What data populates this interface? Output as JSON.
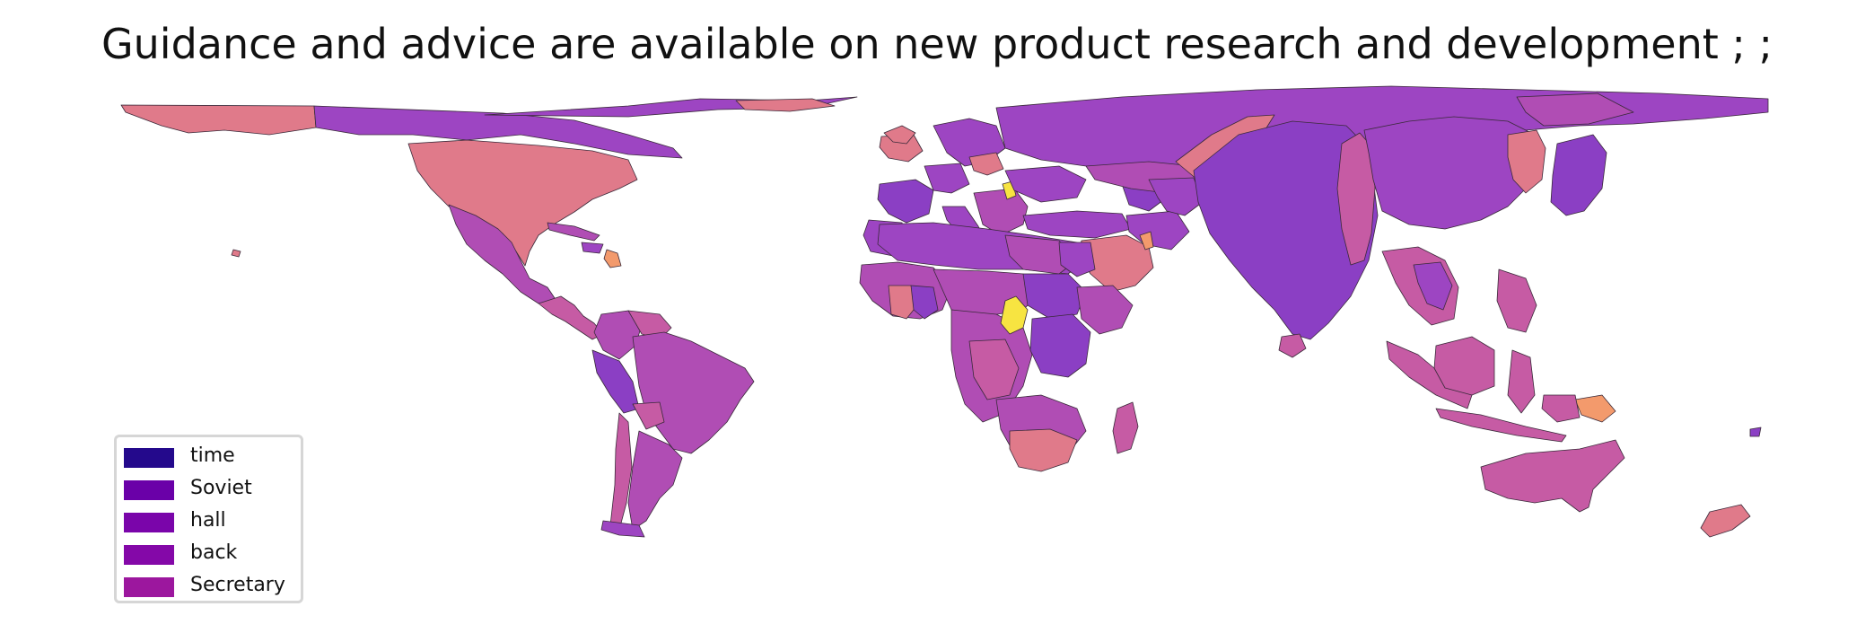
{
  "title": "Guidance and advice are available on new product research and development ; ;",
  "legend": {
    "items": [
      {
        "label": "time",
        "color": "#24098c"
      },
      {
        "label": "Soviet",
        "color": "#6a00a8"
      },
      {
        "label": "hall",
        "color": "#7a05aa"
      },
      {
        "label": "back",
        "color": "#8408a8"
      },
      {
        "label": "Secretary",
        "color": "#9c179e"
      }
    ]
  },
  "palette": {
    "purple": "#8b3fc4",
    "violet": "#9d45c2",
    "magenta": "#b04db4",
    "orchid": "#c65ba4",
    "pink": "#e07a8a",
    "orange": "#f39a6c",
    "yellow": "#f7e441",
    "border": "#3a2a3a"
  }
}
